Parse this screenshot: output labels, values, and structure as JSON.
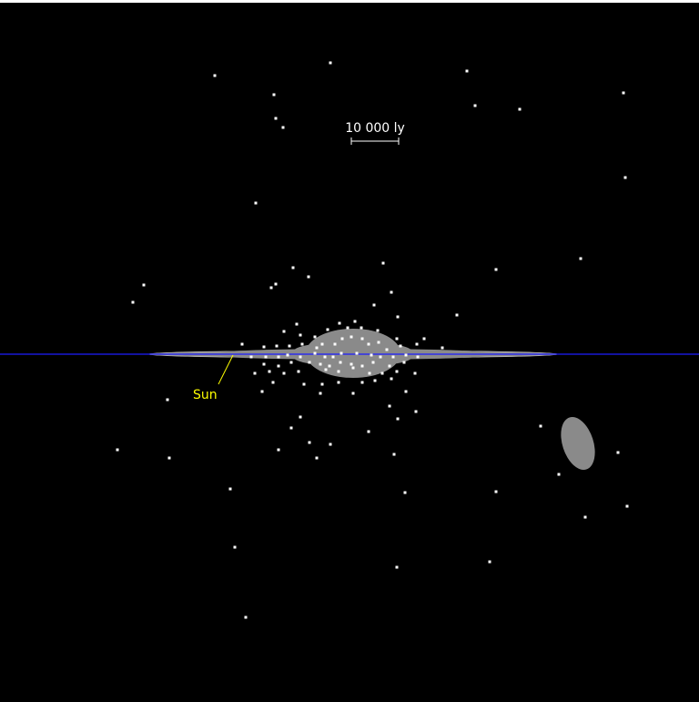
{
  "scale_bar": {
    "label": "10 000 ly"
  },
  "markers": [
    {
      "label": "Sun"
    }
  ],
  "colors": {
    "background": "#000000",
    "galactic_plane": "#1c1cff",
    "galaxy_disk": "#8a8a8a",
    "star": "#ffffff",
    "label": "#ffff00"
  }
}
